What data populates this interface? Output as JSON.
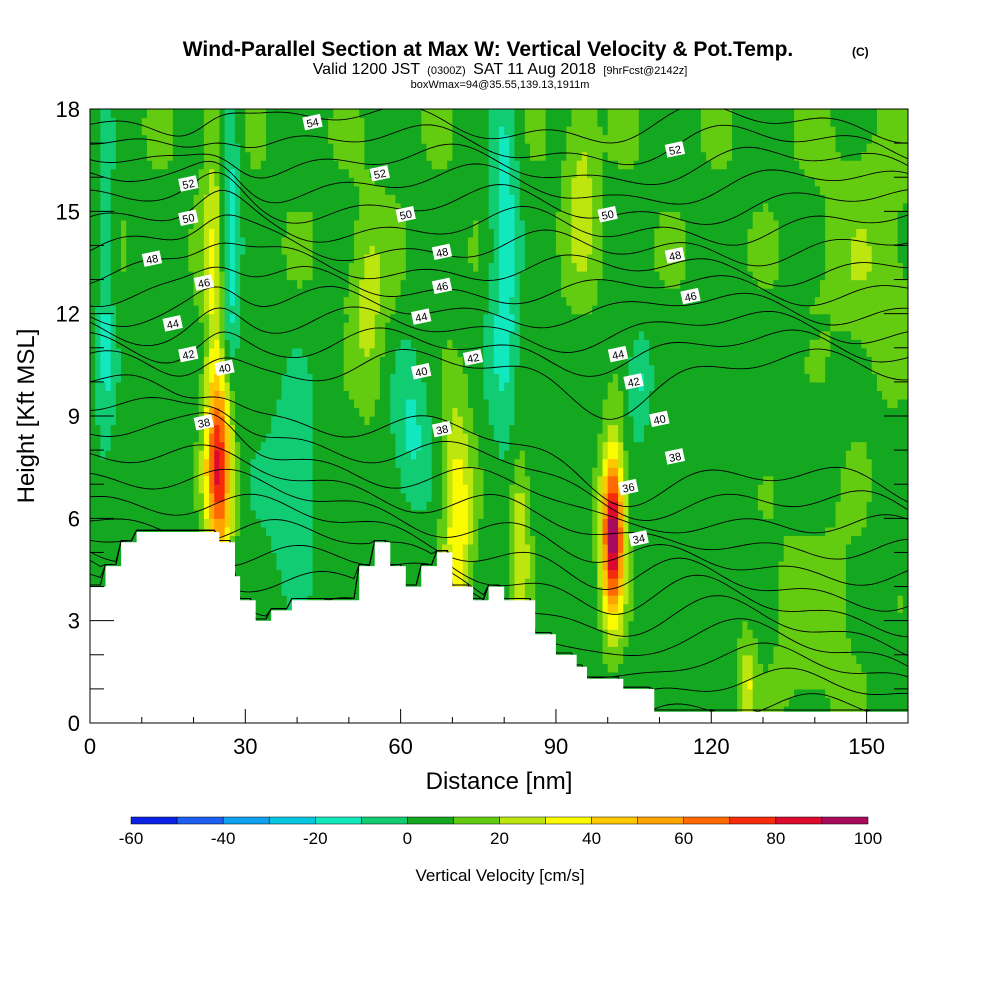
{
  "header": {
    "title": "Wind-Parallel Section at Max W: Vertical Velocity & Pot.Temp.",
    "title_mark": "(C)",
    "sub_a": "Valid 1200 JST",
    "sub_b": "(0300Z)",
    "sub_c": "SAT 11 Aug 2018",
    "sub_d": "[9hrFcst@2142z]",
    "sub_line3": "boxWmax=94@35.55,139.13,1911m"
  },
  "chart_data": {
    "type": "heatmap",
    "xlabel": "Distance [nm]",
    "ylabel": "Height [Kft MSL]",
    "xlim": [
      0,
      158
    ],
    "ylim": [
      0,
      18
    ],
    "x_ticks": [
      "0",
      "30",
      "60",
      "90",
      "120",
      "150"
    ],
    "x_tick_values": [
      0,
      30,
      60,
      90,
      120,
      150
    ],
    "y_ticks": [
      "0",
      "3",
      "6",
      "9",
      "12",
      "15",
      "18"
    ],
    "y_tick_values": [
      0,
      3,
      6,
      9,
      12,
      15,
      18
    ],
    "grid": false,
    "terrain_profile": {
      "x": [
        0,
        3,
        3,
        6,
        6,
        9,
        9,
        25,
        25,
        28,
        28,
        29,
        29,
        32,
        32,
        35,
        35,
        39,
        39,
        52,
        52,
        55,
        55,
        58,
        58,
        61,
        61,
        64,
        64,
        67,
        67,
        70,
        70,
        74,
        74,
        77,
        77,
        80,
        80,
        86,
        86,
        90,
        90,
        93,
        93,
        94,
        94,
        96,
        96,
        103,
        103,
        106,
        106,
        109,
        109,
        110,
        110,
        113,
        113,
        158
      ],
      "y": [
        4.0,
        4.0,
        4.6,
        4.6,
        5.3,
        5.3,
        5.6,
        5.6,
        5.3,
        5.3,
        4.3,
        4.3,
        3.6,
        3.6,
        3.0,
        3.0,
        3.3,
        3.3,
        3.6,
        3.6,
        4.6,
        4.6,
        5.3,
        5.3,
        4.6,
        4.6,
        4.0,
        4.0,
        4.6,
        4.6,
        5.0,
        5.0,
        4.0,
        4.0,
        3.6,
        3.6,
        4.0,
        4.0,
        3.6,
        3.6,
        2.6,
        2.6,
        2.0,
        2.0,
        2.0,
        2.0,
        1.65,
        1.65,
        1.3,
        1.3,
        1.0,
        1.0,
        1.0,
        1.0,
        0.33,
        0.33,
        0.33,
        0.33,
        0.33,
        0.33
      ]
    },
    "vertical_velocity_features": [
      {
        "x": 25,
        "y": 7.5,
        "peak": 70,
        "sx": 1.8,
        "sy": 2.0
      },
      {
        "x": 24,
        "y": 13.0,
        "peak": 22,
        "sx": 1.5,
        "sy": 4.0
      },
      {
        "x": 27,
        "y": 14.0,
        "peak": -25,
        "sx": 1.4,
        "sy": 3.5
      },
      {
        "x": 71,
        "y": 6.0,
        "peak": 35,
        "sx": 2.0,
        "sy": 2.4
      },
      {
        "x": 83,
        "y": 5.5,
        "peak": 25,
        "sx": 1.5,
        "sy": 1.8
      },
      {
        "x": 101,
        "y": 5.6,
        "peak": 94,
        "sx": 1.5,
        "sy": 1.7
      },
      {
        "x": 80,
        "y": 14.0,
        "peak": -25,
        "sx": 2.0,
        "sy": 4.0
      },
      {
        "x": 54,
        "y": 12.0,
        "peak": 18,
        "sx": 2.5,
        "sy": 2.0
      },
      {
        "x": 62,
        "y": 8.5,
        "peak": -18,
        "sx": 2.5,
        "sy": 1.5
      },
      {
        "x": 39,
        "y": 7.0,
        "peak": -12,
        "sx": 4.0,
        "sy": 2.0
      },
      {
        "x": 3,
        "y": 13.0,
        "peak": -18,
        "sx": 1.2,
        "sy": 4.0
      },
      {
        "x": 127,
        "y": 1.2,
        "peak": 25,
        "sx": 1.0,
        "sy": 0.9
      },
      {
        "x": 95,
        "y": 15.5,
        "peak": 18,
        "sx": 2.0,
        "sy": 2.0
      },
      {
        "x": 106,
        "y": 10.0,
        "peak": -18,
        "sx": 1.5,
        "sy": 1.0
      },
      {
        "x": 140,
        "y": 3.0,
        "peak": 10,
        "sx": 8.0,
        "sy": 2.5
      },
      {
        "x": 150,
        "y": 13.0,
        "peak": 10,
        "sx": 6.0,
        "sy": 3.0
      }
    ],
    "theta_contour_labels": [
      {
        "text": "54",
        "x": 43,
        "y": 17.6
      },
      {
        "text": "52",
        "x": 19,
        "y": 15.8
      },
      {
        "text": "52",
        "x": 56,
        "y": 16.1
      },
      {
        "text": "52",
        "x": 113,
        "y": 16.8
      },
      {
        "text": "50",
        "x": 19,
        "y": 14.8
      },
      {
        "text": "50",
        "x": 61,
        "y": 14.9
      },
      {
        "text": "50",
        "x": 100,
        "y": 14.9
      },
      {
        "text": "48",
        "x": 12,
        "y": 13.6
      },
      {
        "text": "48",
        "x": 68,
        "y": 13.8
      },
      {
        "text": "48",
        "x": 113,
        "y": 13.7
      },
      {
        "text": "46",
        "x": 22,
        "y": 12.9
      },
      {
        "text": "46",
        "x": 68,
        "y": 12.8
      },
      {
        "text": "46",
        "x": 116,
        "y": 12.5
      },
      {
        "text": "44",
        "x": 16,
        "y": 11.7
      },
      {
        "text": "44",
        "x": 64,
        "y": 11.9
      },
      {
        "text": "44",
        "x": 102,
        "y": 10.8
      },
      {
        "text": "42",
        "x": 19,
        "y": 10.8
      },
      {
        "text": "42",
        "x": 74,
        "y": 10.7
      },
      {
        "text": "42",
        "x": 105,
        "y": 10.0
      },
      {
        "text": "40",
        "x": 26,
        "y": 10.4
      },
      {
        "text": "40",
        "x": 64,
        "y": 10.3
      },
      {
        "text": "40",
        "x": 110,
        "y": 8.9
      },
      {
        "text": "38",
        "x": 22,
        "y": 8.8
      },
      {
        "text": "38",
        "x": 68,
        "y": 8.6
      },
      {
        "text": "38",
        "x": 113,
        "y": 7.8
      },
      {
        "text": "36",
        "x": 104,
        "y": 6.9
      },
      {
        "text": "34",
        "x": 106,
        "y": 5.4
      }
    ]
  },
  "colorbar": {
    "title": "Vertical Velocity [cm/s]",
    "tick_labels": [
      "-60",
      "-40",
      "-20",
      "0",
      "20",
      "40",
      "60",
      "80",
      "100"
    ],
    "tick_values": [
      -60,
      -40,
      -20,
      0,
      20,
      40,
      60,
      80,
      100
    ],
    "bin_edges": [
      -60,
      -50,
      -40,
      -30,
      -20,
      -10,
      0,
      10,
      20,
      30,
      40,
      50,
      60,
      70,
      80,
      90,
      100
    ],
    "colors": [
      "#0b22e6",
      "#1e5ff2",
      "#10a2ef",
      "#05c8e0",
      "#12e8be",
      "#11cc73",
      "#14a820",
      "#64cc10",
      "#bde60f",
      "#fafa00",
      "#ffc800",
      "#ffa300",
      "#ff6a00",
      "#f62b0a",
      "#dc0a2f",
      "#a80a5e",
      "#6a1494"
    ]
  }
}
